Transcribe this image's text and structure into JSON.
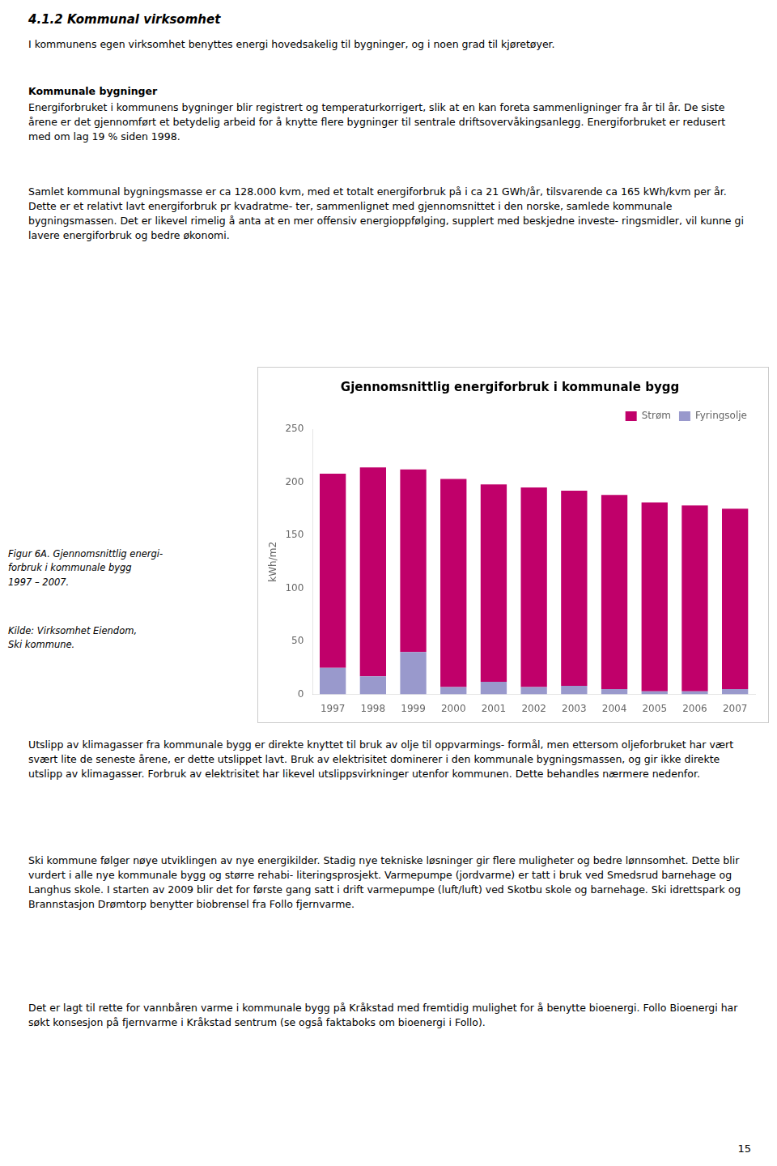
{
  "chart_data": {
    "type": "bar",
    "stacked": true,
    "title": "Gjennomsnittlig energiforbruk i kommunale bygg",
    "categories": [
      "1997",
      "1998",
      "1999",
      "2000",
      "2001",
      "2002",
      "2003",
      "2004",
      "2005",
      "2006",
      "2007"
    ],
    "series": [
      {
        "name": "Fyringsolje",
        "color": "#9999CC",
        "values": [
          25,
          17,
          40,
          7,
          12,
          7,
          8,
          5,
          3,
          3,
          5
        ]
      },
      {
        "name": "Strøm",
        "color": "#C0006A",
        "values": [
          183,
          197,
          172,
          196,
          186,
          188,
          184,
          183,
          178,
          175,
          170
        ]
      }
    ],
    "ylabel": "kWh/m2",
    "ylim": [
      0,
      250
    ],
    "yticks": [
      0,
      50,
      100,
      150,
      200,
      250
    ],
    "grid": false,
    "legend": "upper right"
  },
  "page_text": [
    {
      "style": "heading",
      "text": "4.1.2 Kommunal virksomhet"
    },
    {
      "style": "body",
      "text": "I kommunens egen virksomhet benyttes energi hovedsakelig til bygninger, og i noen grad til kjøretøyer."
    },
    {
      "style": "bold",
      "text": "Kommunale bygninger"
    },
    {
      "style": "body",
      "text": "Energiforbruket i kommunens bygninger blir registrert og temperaturkorrigert, slik at en kan foreta sammenligninger fra år til år. De siste årene er det gjennomført et betydelig arbeid for å knytte flere bygninger til sentrale driftsovervåkingsanlegg. Energiforbruket er redusert med om lag 19 % siden 1998."
    },
    {
      "style": "body",
      "text": "Samlet kommunal bygningsmasse er ca 128.000 kvm, med et totalt energiforbruk på i ca 21 GWh/år, tilsvarende ca 165 kWh/kvm per år. Dette er et relativt lavt energiforbruk pr kvadratme- ter, sammenlignet med gjennomsnittet i den norske, samlede kommunale bygningsmassen. Det er likevel rimelig å anta at en mer offensiv energioppfølging, supplert med beskjedne investe- ringsmidler, vil kunne gi lavere energiforbruk og bedre økonomi."
    },
    {
      "style": "caption",
      "text": "Figur 6A. Gjennomsnittlig energi-\nforbruk i kommunale bygg\n1997 – 2007."
    },
    {
      "style": "caption",
      "text": "Kilde: Virksomhet Eiendom,\nSki kommune."
    },
    {
      "style": "body",
      "text": "Utslipp av klimagasser fra kommunale bygg er direkte knyttet til bruk av olje til oppvarmings- formål, men ettersom oljeforbruket har vært svært lite de seneste årene, er dette utslippet lavt. Bruk av elektrisitet dominerer i den kommunale bygningsmassen, og gir ikke direkte utslipp av klimagasser. Forbruk av elektrisitet har likevel utslippsvirkninger utenfor kommunen. Dette behandles nærmere nedenfor."
    },
    {
      "style": "body",
      "text": "Ski kommune følger nøye utviklingen av nye energikilder. Stadig nye tekniske løsninger gir flere muligheter og bedre lønnsomhet. Dette blir vurdert i alle nye kommunale bygg og større rehabi- literingsprosjekt. Varmepumpe (jordvarme) er tatt i bruk ved Smedsrud barnehage og Langhus skole. I starten av 2009 blir det for første gang satt i drift varmepumpe (luft/luft) ved Skotbu skole og barnehage. Ski idrettspark og Brannstasjon Drømtorp benytter biobrensel fra Follo fjernvarme."
    },
    {
      "style": "body",
      "text": "Det er lagt til rette for vannbåren varme i kommunale bygg på Kråkstad med fremtidig mulighet for å benytte bioenergi. Follo Bioenergi har søkt konsesjon på fjernvarme i Kråkstad sentrum (se også faktaboks om bioenergi i Follo)."
    },
    {
      "style": "page_number",
      "text": "15"
    }
  ]
}
